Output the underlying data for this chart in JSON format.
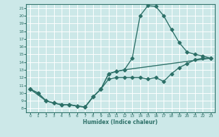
{
  "background_color": "#cce8e8",
  "grid_color": "#ffffff",
  "line_color": "#2d7068",
  "xlabel": "Humidex (Indice chaleur)",
  "xlim": [
    -0.5,
    23.5
  ],
  "ylim": [
    7.5,
    21.5
  ],
  "xticks": [
    0,
    1,
    2,
    3,
    4,
    5,
    6,
    7,
    8,
    9,
    10,
    11,
    12,
    13,
    14,
    15,
    16,
    17,
    18,
    19,
    20,
    21,
    22,
    23
  ],
  "yticks": [
    8,
    9,
    10,
    11,
    12,
    13,
    14,
    15,
    16,
    17,
    18,
    19,
    20,
    21
  ],
  "line1_x": [
    0,
    1,
    2,
    3,
    4,
    5,
    6,
    7,
    8,
    9,
    10,
    11,
    12,
    13,
    14,
    15,
    16,
    17,
    18,
    19,
    20,
    21,
    22,
    23
  ],
  "line1_y": [
    10.5,
    10.0,
    9.0,
    8.7,
    8.5,
    8.5,
    8.3,
    8.2,
    9.5,
    10.5,
    11.8,
    12.0,
    12.0,
    12.0,
    12.0,
    11.8,
    12.0,
    11.5,
    12.5,
    13.3,
    13.8,
    14.3,
    14.5,
    14.5
  ],
  "line2_x": [
    0,
    1,
    2,
    3,
    4,
    5,
    6,
    7,
    8,
    9,
    10,
    11,
    12,
    13,
    14,
    15,
    16,
    17,
    18,
    19,
    20,
    21,
    22,
    23
  ],
  "line2_y": [
    10.5,
    10.0,
    9.0,
    8.7,
    8.5,
    8.5,
    8.3,
    8.2,
    9.5,
    10.5,
    12.5,
    12.8,
    13.0,
    14.5,
    20.0,
    21.3,
    21.2,
    20.0,
    18.2,
    16.5,
    15.3,
    15.0,
    14.8,
    14.5
  ],
  "line3_x": [
    0,
    2,
    3,
    4,
    5,
    6,
    7,
    8,
    9,
    10,
    11,
    12,
    23
  ],
  "line3_y": [
    10.5,
    9.0,
    8.7,
    8.5,
    8.5,
    8.3,
    8.2,
    9.5,
    10.5,
    12.5,
    12.8,
    13.0,
    14.5
  ]
}
